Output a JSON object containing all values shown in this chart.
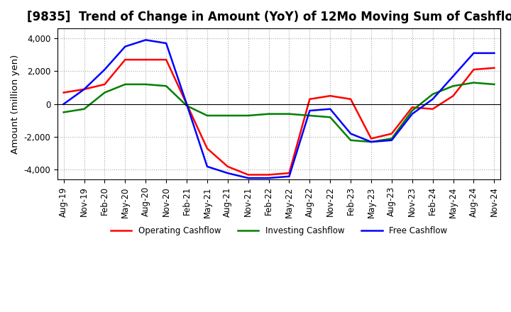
{
  "title": "[9835]  Trend of Change in Amount (YoY) of 12Mo Moving Sum of Cashflows",
  "ylabel": "Amount (million yen)",
  "ylim": [
    -4600,
    4600
  ],
  "yticks": [
    -4000,
    -2000,
    0,
    2000,
    4000
  ],
  "x_labels": [
    "Aug-19",
    "Nov-19",
    "Feb-20",
    "May-20",
    "Aug-20",
    "Nov-20",
    "Feb-21",
    "May-21",
    "Aug-21",
    "Nov-21",
    "Feb-22",
    "May-22",
    "Aug-22",
    "Nov-22",
    "Feb-23",
    "May-23",
    "Aug-23",
    "Nov-23",
    "Feb-24",
    "May-24",
    "Aug-24",
    "Nov-24"
  ],
  "operating": [
    700,
    900,
    1200,
    2700,
    2700,
    2700,
    0,
    -2700,
    -3800,
    -4300,
    -4300,
    -4200,
    300,
    500,
    300,
    -2100,
    -1800,
    -200,
    -300,
    500,
    2100,
    2200
  ],
  "investing": [
    -500,
    -300,
    700,
    1200,
    1200,
    1100,
    -100,
    -700,
    -700,
    -700,
    -600,
    -600,
    -700,
    -800,
    -2200,
    -2300,
    -2100,
    -400,
    600,
    1100,
    1300,
    1200
  ],
  "free": [
    0,
    900,
    2100,
    3500,
    3900,
    3700,
    0,
    -3800,
    -4200,
    -4500,
    -4500,
    -4400,
    -400,
    -300,
    -1800,
    -2300,
    -2200,
    -600,
    300,
    1700,
    3100,
    3100
  ],
  "op_color": "#ff0000",
  "inv_color": "#008000",
  "free_color": "#0000ff",
  "bg_color": "#ffffff",
  "grid_color": "#aaaaaa",
  "title_fontsize": 12,
  "tick_fontsize": 8.5,
  "label_fontsize": 9.5
}
